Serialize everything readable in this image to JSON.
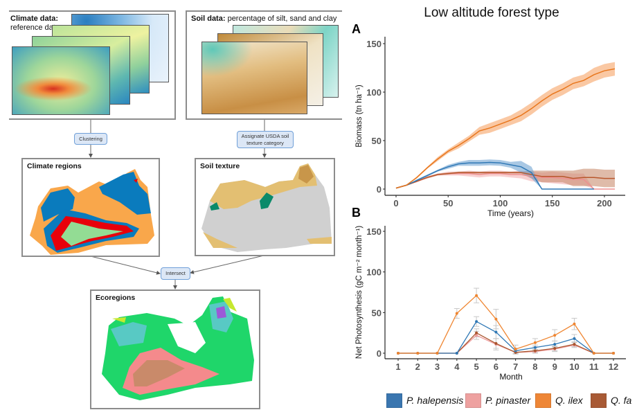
{
  "diagram": {
    "climate_data": {
      "title_bold": "Climate data:",
      "title_rest": "reference data"
    },
    "soil_data": {
      "title_bold": "Soil data:",
      "title_rest": " percentage of silt, sand and clay"
    },
    "clustering_label": "Clustering",
    "assign_label": "Assignate USDA soil texture category",
    "climate_regions": {
      "title": "Climate regions",
      "colors": [
        "#f9a74b",
        "#0a7bbd",
        "#e8000b",
        "#93dc94"
      ]
    },
    "soil_texture": {
      "title": "Soil texture",
      "colors": [
        "#d0d0d0",
        "#e3bf72",
        "#0b8a6a",
        "#c8964a"
      ]
    },
    "intersect_label": "Intersect",
    "ecoregions": {
      "title": "Ecoregions",
      "colors": [
        "#1fd66a",
        "#f48a8c",
        "#c98a6a",
        "#58c9c4",
        "#c6e830",
        "#9b59d8"
      ]
    }
  },
  "figure_title": "Low altitude  forest type",
  "chart_data": [
    {
      "panel": "A",
      "type": "line",
      "xlabel": "Time (years)",
      "ylabel": "Biomass (tn ha⁻¹)",
      "xlim": [
        0,
        210
      ],
      "ylim": [
        0,
        150
      ],
      "xticks": [
        "0",
        "50",
        "100",
        "150",
        "200"
      ],
      "yticks": [
        "0",
        "50",
        "100",
        "150"
      ],
      "grid": false,
      "band": "uncertainty ribbon",
      "x": [
        0,
        10,
        20,
        30,
        40,
        50,
        60,
        70,
        80,
        90,
        100,
        110,
        120,
        130,
        140,
        150,
        160,
        170,
        180,
        190,
        200,
        210
      ],
      "series": [
        {
          "name": "Q. ilex",
          "color": "#e8761c",
          "fill": "#f7a466",
          "values": [
            1,
            4,
            12,
            22,
            31,
            39,
            45,
            52,
            60,
            63,
            67,
            71,
            76,
            83,
            91,
            98,
            103,
            109,
            112,
            118,
            122,
            124
          ],
          "sd": [
            0,
            0,
            1,
            1,
            2,
            2,
            3,
            3,
            4,
            5,
            5,
            5,
            6,
            6,
            6,
            6,
            6,
            6,
            6,
            7,
            7,
            7
          ]
        },
        {
          "name": "P. halepensis",
          "color": "#2f78b5",
          "fill": "#6fa3d2",
          "values": [
            1,
            4,
            9,
            14,
            19,
            23,
            26,
            27,
            27,
            27.5,
            27,
            25,
            23,
            17,
            0,
            0,
            0,
            0,
            0,
            0,
            null,
            null
          ],
          "sd": [
            0,
            0,
            1,
            1,
            1,
            2,
            2,
            3,
            3,
            3,
            3,
            3,
            6,
            6,
            0,
            0,
            0,
            0,
            0,
            0,
            null,
            null
          ]
        },
        {
          "name": "P. pinaster",
          "color": "#ee8f8f",
          "fill": "#f4b0b3",
          "values": [
            1,
            4,
            8,
            12,
            15,
            16,
            16,
            16,
            15,
            16,
            16,
            15,
            15,
            13,
            12,
            12,
            11,
            10,
            10,
            0,
            0,
            0
          ],
          "sd": [
            0,
            0,
            1,
            1,
            1,
            2,
            2,
            3,
            3,
            3,
            3,
            3,
            4,
            5,
            5,
            6,
            6,
            6,
            6,
            0,
            0,
            0
          ]
        },
        {
          "name": "Q. fa",
          "color": "#b8572c",
          "fill": "#c98d70",
          "values": [
            1,
            4,
            8,
            12,
            15,
            16,
            17,
            17,
            17,
            17,
            17,
            17,
            17,
            15,
            13,
            13,
            13,
            11,
            12,
            12,
            11,
            11
          ],
          "sd": [
            0,
            0,
            0,
            1,
            1,
            1,
            1,
            1,
            1,
            1,
            1,
            1,
            1,
            4,
            6,
            6,
            6,
            8,
            9,
            9,
            9,
            9
          ]
        }
      ]
    },
    {
      "panel": "B",
      "type": "line",
      "xlabel": "Month",
      "ylabel": "Net Photosynthesis (gC m⁻² month⁻¹)",
      "xlim": [
        1,
        12
      ],
      "ylim": [
        0,
        150
      ],
      "categories": [
        "1",
        "2",
        "3",
        "4",
        "5",
        "6",
        "7",
        "8",
        "9",
        "10",
        "11",
        "12"
      ],
      "yticks": [
        "0",
        "50",
        "100",
        "150"
      ],
      "grid": false,
      "error_bars": true,
      "series": [
        {
          "name": "P. halepensis",
          "color": "#2f78b5",
          "values": [
            0,
            0,
            0,
            0,
            39,
            26,
            3,
            7,
            11,
            18,
            0,
            0
          ],
          "err": [
            0,
            0,
            0,
            0,
            6,
            8,
            3,
            3,
            4,
            5,
            0,
            0
          ]
        },
        {
          "name": "P. pinaster",
          "color": "#ee9a9a",
          "values": [
            0,
            0,
            0,
            0,
            22,
            11,
            1,
            2,
            5,
            10,
            0,
            0
          ],
          "err": [
            0,
            0,
            0,
            0,
            5,
            7,
            2,
            2,
            3,
            3,
            0,
            0
          ]
        },
        {
          "name": "Q. ilex",
          "color": "#ef8530",
          "values": [
            0,
            0,
            0,
            49,
            71,
            42,
            5,
            13,
            22,
            36,
            0,
            0
          ],
          "err": [
            0,
            0,
            0,
            6,
            9,
            12,
            5,
            5,
            7,
            7,
            0,
            0
          ]
        },
        {
          "name": "Q. fa",
          "color": "#a9552e",
          "values": [
            0,
            0,
            0,
            0,
            25,
            12,
            1,
            3,
            6,
            11,
            0,
            0
          ],
          "err": [
            0,
            0,
            0,
            0,
            5,
            6,
            2,
            2,
            3,
            3,
            0,
            0
          ]
        }
      ]
    }
  ],
  "legend": [
    {
      "label": "P. halepensis",
      "color": "#3a76b0"
    },
    {
      "label": "P. pinaster",
      "color": "#eea1a0"
    },
    {
      "label": "Q. ilex",
      "color": "#ee8636"
    },
    {
      "label": "Q. fa",
      "color": "#a85a35"
    }
  ]
}
